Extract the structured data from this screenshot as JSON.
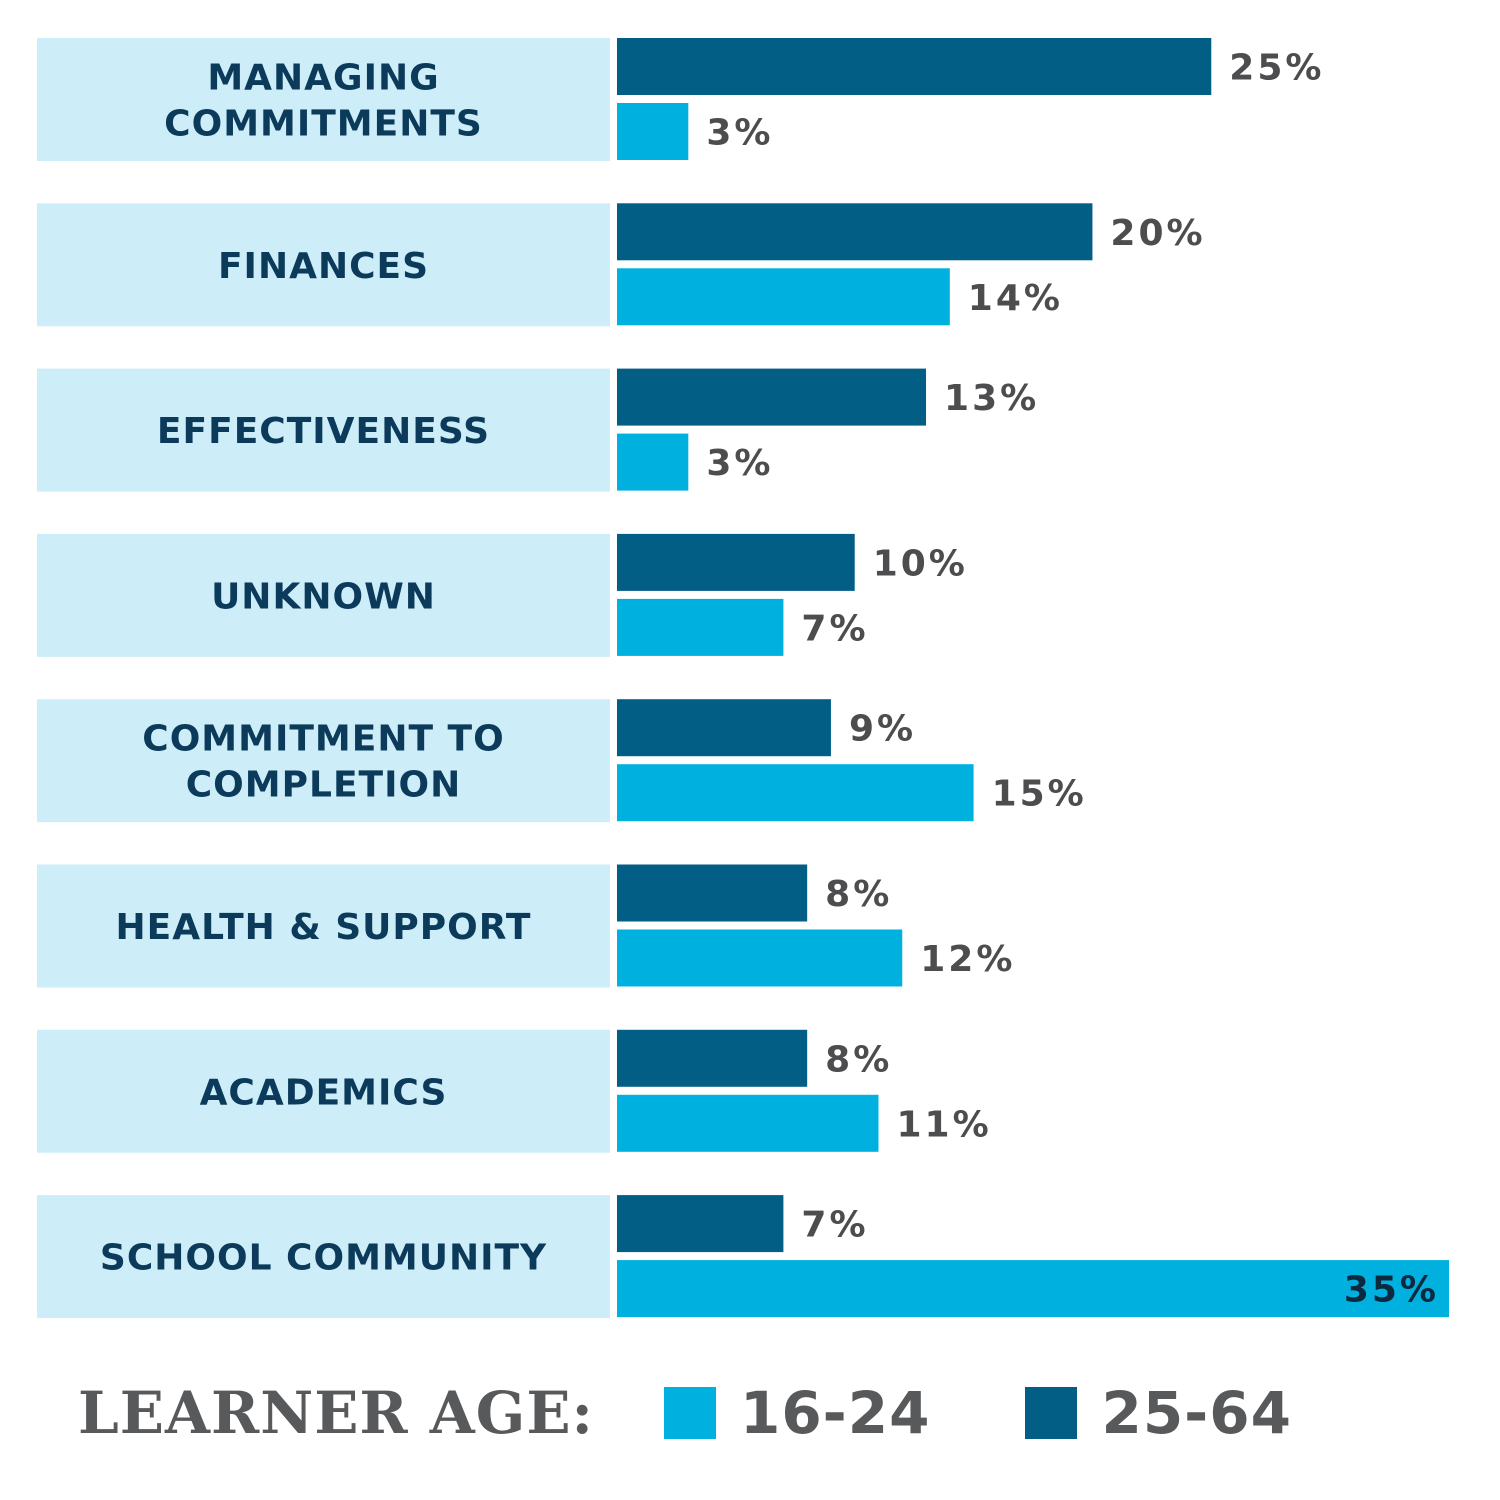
{
  "colors": {
    "label_bg": "#cdeef8",
    "series_25_64": "#035e86",
    "series_16_24": "#00b0df"
  },
  "legend": {
    "title": "LEARNER AGE:",
    "items": [
      {
        "label": "16-24",
        "color": "#00b0df"
      },
      {
        "label": "25-64",
        "color": "#035e86"
      }
    ]
  },
  "chart_data": {
    "type": "bar",
    "orientation": "horizontal",
    "categories": [
      [
        "MANAGING",
        "COMMITMENTS"
      ],
      [
        "FINANCES"
      ],
      [
        "EFFECTIVENESS"
      ],
      [
        "UNKNOWN"
      ],
      [
        "COMMITMENT TO",
        "COMPLETION"
      ],
      [
        "HEALTH & SUPPORT"
      ],
      [
        "ACADEMICS"
      ],
      [
        "SCHOOL COMMUNITY"
      ]
    ],
    "series": [
      {
        "name": "25-64",
        "values": [
          25,
          20,
          13,
          10,
          9,
          8,
          8,
          7
        ],
        "labels": [
          "25%",
          "20%",
          "13%",
          "10%",
          "9%",
          "8%",
          "8%",
          "7%"
        ]
      },
      {
        "name": "16-24",
        "values": [
          3,
          14,
          3,
          7,
          15,
          12,
          11,
          35
        ],
        "labels": [
          "3%",
          "14%",
          "3%",
          "7%",
          "15%",
          "12%",
          "11%",
          "35%"
        ]
      }
    ],
    "xlim": [
      0,
      35
    ],
    "grid": false,
    "legend_position": "bottom"
  }
}
